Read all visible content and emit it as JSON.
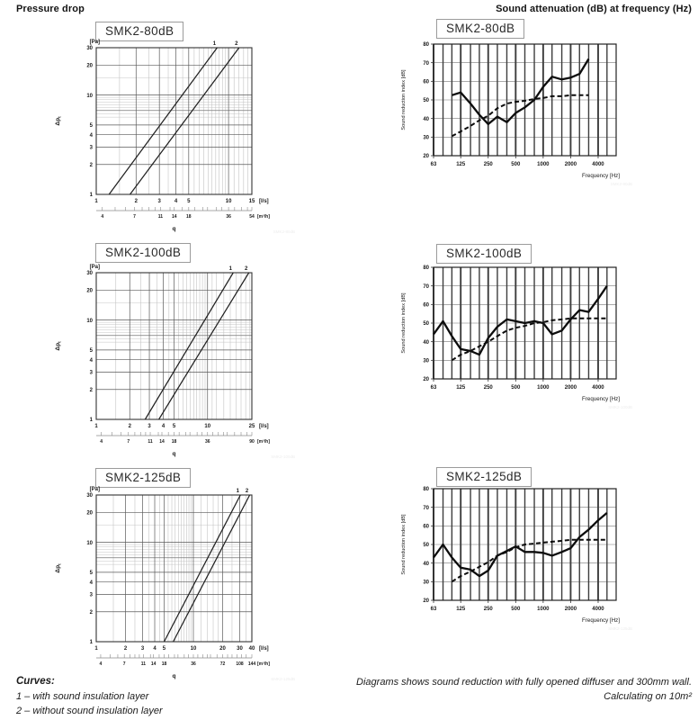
{
  "page": {
    "header_left": "Pressure drop",
    "header_right": "Sound attenuation (dB) at frequency (Hz)",
    "footer": {
      "curves_title": "Curves:",
      "curve1": "1 – with sound insulation layer",
      "curve2": "2 – without sound insulation layer",
      "note_line1": "Diagrams shows sound reduction with fully opened diffuser and 300mm wall.",
      "note_line2": "Calculating on 10m²"
    }
  },
  "chart_data": [
    {
      "type": "line",
      "variant": "pressure",
      "title": "SMK2-80dB",
      "watermark": "SMK2-80dB",
      "ylabel": "Δpt",
      "y_unit": "[Pa]",
      "x_unit": "[l/s]",
      "x2_unit": "[m³/h]",
      "x2_label": "q",
      "xlim": [
        1,
        15
      ],
      "ylim": [
        1,
        30
      ],
      "x_ticks": [
        1,
        2,
        3,
        4,
        5,
        10,
        15
      ],
      "y_ticks": [
        1,
        2,
        3,
        4,
        5,
        10,
        20,
        30
      ],
      "x2_ticks": [
        4,
        7,
        11,
        14,
        18,
        36,
        54
      ],
      "series": [
        {
          "name": "1",
          "points": [
            [
              1.25,
              1
            ],
            [
              8.2,
              30
            ]
          ]
        },
        {
          "name": "2",
          "points": [
            [
              1.8,
              1
            ],
            [
              12,
              30
            ]
          ]
        }
      ]
    },
    {
      "type": "line",
      "variant": "sound",
      "title": "SMK2-80dB",
      "watermark": "SMK2-80dB",
      "ylabel": "Sound reduction index [dB]",
      "xlabel": "Frequency [Hz]",
      "xlim": [
        63,
        6300
      ],
      "ylim": [
        20,
        80
      ],
      "y_ticks": [
        20,
        30,
        40,
        50,
        60,
        70,
        80
      ],
      "x_ticks_labeled": [
        63,
        125,
        250,
        500,
        1000,
        2000,
        4000
      ],
      "x_bands": [
        63,
        80,
        100,
        125,
        160,
        200,
        250,
        315,
        400,
        500,
        630,
        800,
        1000,
        1250,
        1600,
        2000,
        2500,
        3150,
        4000,
        5000
      ],
      "series": [
        {
          "style": "solid",
          "frequencies": [
            100,
            125,
            160,
            200,
            250,
            315,
            400,
            500,
            630,
            800,
            1000,
            1250,
            1600,
            2000,
            2500,
            3150
          ],
          "values": [
            52.5,
            54,
            48,
            42,
            37,
            41,
            38,
            43,
            46,
            50,
            57,
            62.5,
            61,
            62,
            64,
            72
          ]
        },
        {
          "style": "dashed",
          "frequencies": [
            100,
            125,
            160,
            200,
            250,
            315,
            400,
            500,
            630,
            800,
            1000,
            1250,
            1600,
            2000,
            2500,
            3150
          ],
          "values": [
            30.5,
            33,
            36,
            39,
            41.5,
            45.5,
            48,
            49,
            49.5,
            50.5,
            51,
            52,
            52,
            52.5,
            52.5,
            52.5
          ]
        }
      ]
    },
    {
      "type": "line",
      "variant": "pressure",
      "title": "SMK2-100dB",
      "watermark": "SMK2-100dB",
      "ylabel": "Δpt",
      "y_unit": "[Pa]",
      "x_unit": "[l/s]",
      "x2_unit": "[m³/h]",
      "x2_label": "q",
      "xlim": [
        1,
        25
      ],
      "ylim": [
        1,
        30
      ],
      "x_ticks": [
        1,
        2,
        3,
        4,
        5,
        10,
        25
      ],
      "y_ticks": [
        1,
        2,
        3,
        4,
        5,
        10,
        20,
        30
      ],
      "x2_ticks": [
        4,
        7,
        11,
        14,
        18,
        36,
        90
      ],
      "series": [
        {
          "name": "1",
          "points": [
            [
              2.75,
              1
            ],
            [
              17,
              30
            ]
          ]
        },
        {
          "name": "2",
          "points": [
            [
              3.65,
              1
            ],
            [
              23.5,
              30
            ]
          ]
        }
      ]
    },
    {
      "type": "line",
      "variant": "sound",
      "title": "SMK2-100dB",
      "watermark": "SMK2-100dB",
      "ylabel": "Sound reduction index [dB]",
      "xlabel": "Frequency [Hz]",
      "xlim": [
        63,
        6300
      ],
      "ylim": [
        20,
        80
      ],
      "y_ticks": [
        20,
        30,
        40,
        50,
        60,
        70,
        80
      ],
      "x_ticks_labeled": [
        63,
        125,
        250,
        500,
        1000,
        2000,
        4000
      ],
      "x_bands": [
        63,
        80,
        100,
        125,
        160,
        200,
        250,
        315,
        400,
        500,
        630,
        800,
        1000,
        1250,
        1600,
        2000,
        2500,
        3150,
        4000,
        5000
      ],
      "series": [
        {
          "style": "solid",
          "frequencies": [
            63,
            80,
            100,
            125,
            160,
            200,
            250,
            315,
            400,
            500,
            630,
            800,
            1000,
            1250,
            1600,
            2000,
            2500,
            3150,
            4000,
            5000
          ],
          "values": [
            44,
            51,
            43,
            36,
            35,
            33,
            42,
            48,
            52,
            51,
            50,
            51,
            50,
            44,
            46,
            52,
            57,
            56,
            63,
            70
          ]
        },
        {
          "style": "dashed",
          "frequencies": [
            100,
            125,
            160,
            200,
            250,
            315,
            400,
            500,
            630,
            800,
            1000,
            1250,
            1600,
            2000,
            2500,
            3150,
            4000,
            5000
          ],
          "values": [
            30,
            33,
            35,
            37.5,
            40,
            43,
            46,
            47.5,
            48.5,
            50,
            50.5,
            51.5,
            52,
            52.5,
            52.5,
            52.5,
            52.5,
            52.5
          ]
        }
      ]
    },
    {
      "type": "line",
      "variant": "pressure",
      "title": "SMK2-125dB",
      "watermark": "SMK2-125dB",
      "ylabel": "Δpt",
      "y_unit": "[Pa]",
      "x_unit": "[l/s]",
      "x2_unit": "[m³/h]",
      "x2_label": "q",
      "xlim": [
        1,
        40
      ],
      "ylim": [
        1,
        30
      ],
      "x_ticks": [
        1,
        2,
        3,
        4,
        5,
        10,
        20,
        30,
        40
      ],
      "y_ticks": [
        1,
        2,
        3,
        4,
        5,
        10,
        20,
        30
      ],
      "x2_ticks": [
        4,
        7,
        11,
        14,
        18,
        36,
        72,
        108,
        144
      ],
      "series": [
        {
          "name": "1",
          "points": [
            [
              5,
              1
            ],
            [
              30.5,
              30
            ]
          ]
        },
        {
          "name": "2",
          "points": [
            [
              6.2,
              1
            ],
            [
              38,
              30
            ]
          ]
        }
      ]
    },
    {
      "type": "line",
      "variant": "sound",
      "title": "SMK2-125dB",
      "watermark": "SMK2-125dB",
      "ylabel": "Sound reduction index [dB]",
      "xlabel": "Frequency [Hz]",
      "xlim": [
        63,
        6300
      ],
      "ylim": [
        20,
        80
      ],
      "y_ticks": [
        20,
        30,
        40,
        50,
        60,
        70,
        80
      ],
      "x_ticks_labeled": [
        63,
        125,
        250,
        500,
        1000,
        2000,
        4000
      ],
      "x_bands": [
        63,
        80,
        100,
        125,
        160,
        200,
        250,
        315,
        400,
        500,
        630,
        800,
        1000,
        1250,
        1600,
        2000,
        2500,
        3150,
        4000,
        5000
      ],
      "series": [
        {
          "style": "solid",
          "frequencies": [
            63,
            80,
            100,
            125,
            160,
            200,
            250,
            315,
            400,
            500,
            630,
            800,
            1000,
            1250,
            1600,
            2000,
            2500,
            3150,
            4000,
            5000
          ],
          "values": [
            43,
            50,
            43,
            37.5,
            36.5,
            33,
            36,
            44,
            46.5,
            49,
            46,
            46,
            45.5,
            44,
            46,
            48,
            54,
            58,
            63,
            67
          ]
        },
        {
          "style": "dashed",
          "frequencies": [
            100,
            125,
            160,
            200,
            250,
            315,
            400,
            500,
            630,
            800,
            1000,
            1250,
            1600,
            2000,
            2500,
            3150,
            4000,
            5000
          ],
          "values": [
            30,
            33,
            35.5,
            38,
            40.5,
            44,
            46,
            48.5,
            50,
            50.5,
            51,
            51.5,
            52,
            52.5,
            52.5,
            52.5,
            52.5,
            52.5
          ]
        }
      ]
    }
  ]
}
